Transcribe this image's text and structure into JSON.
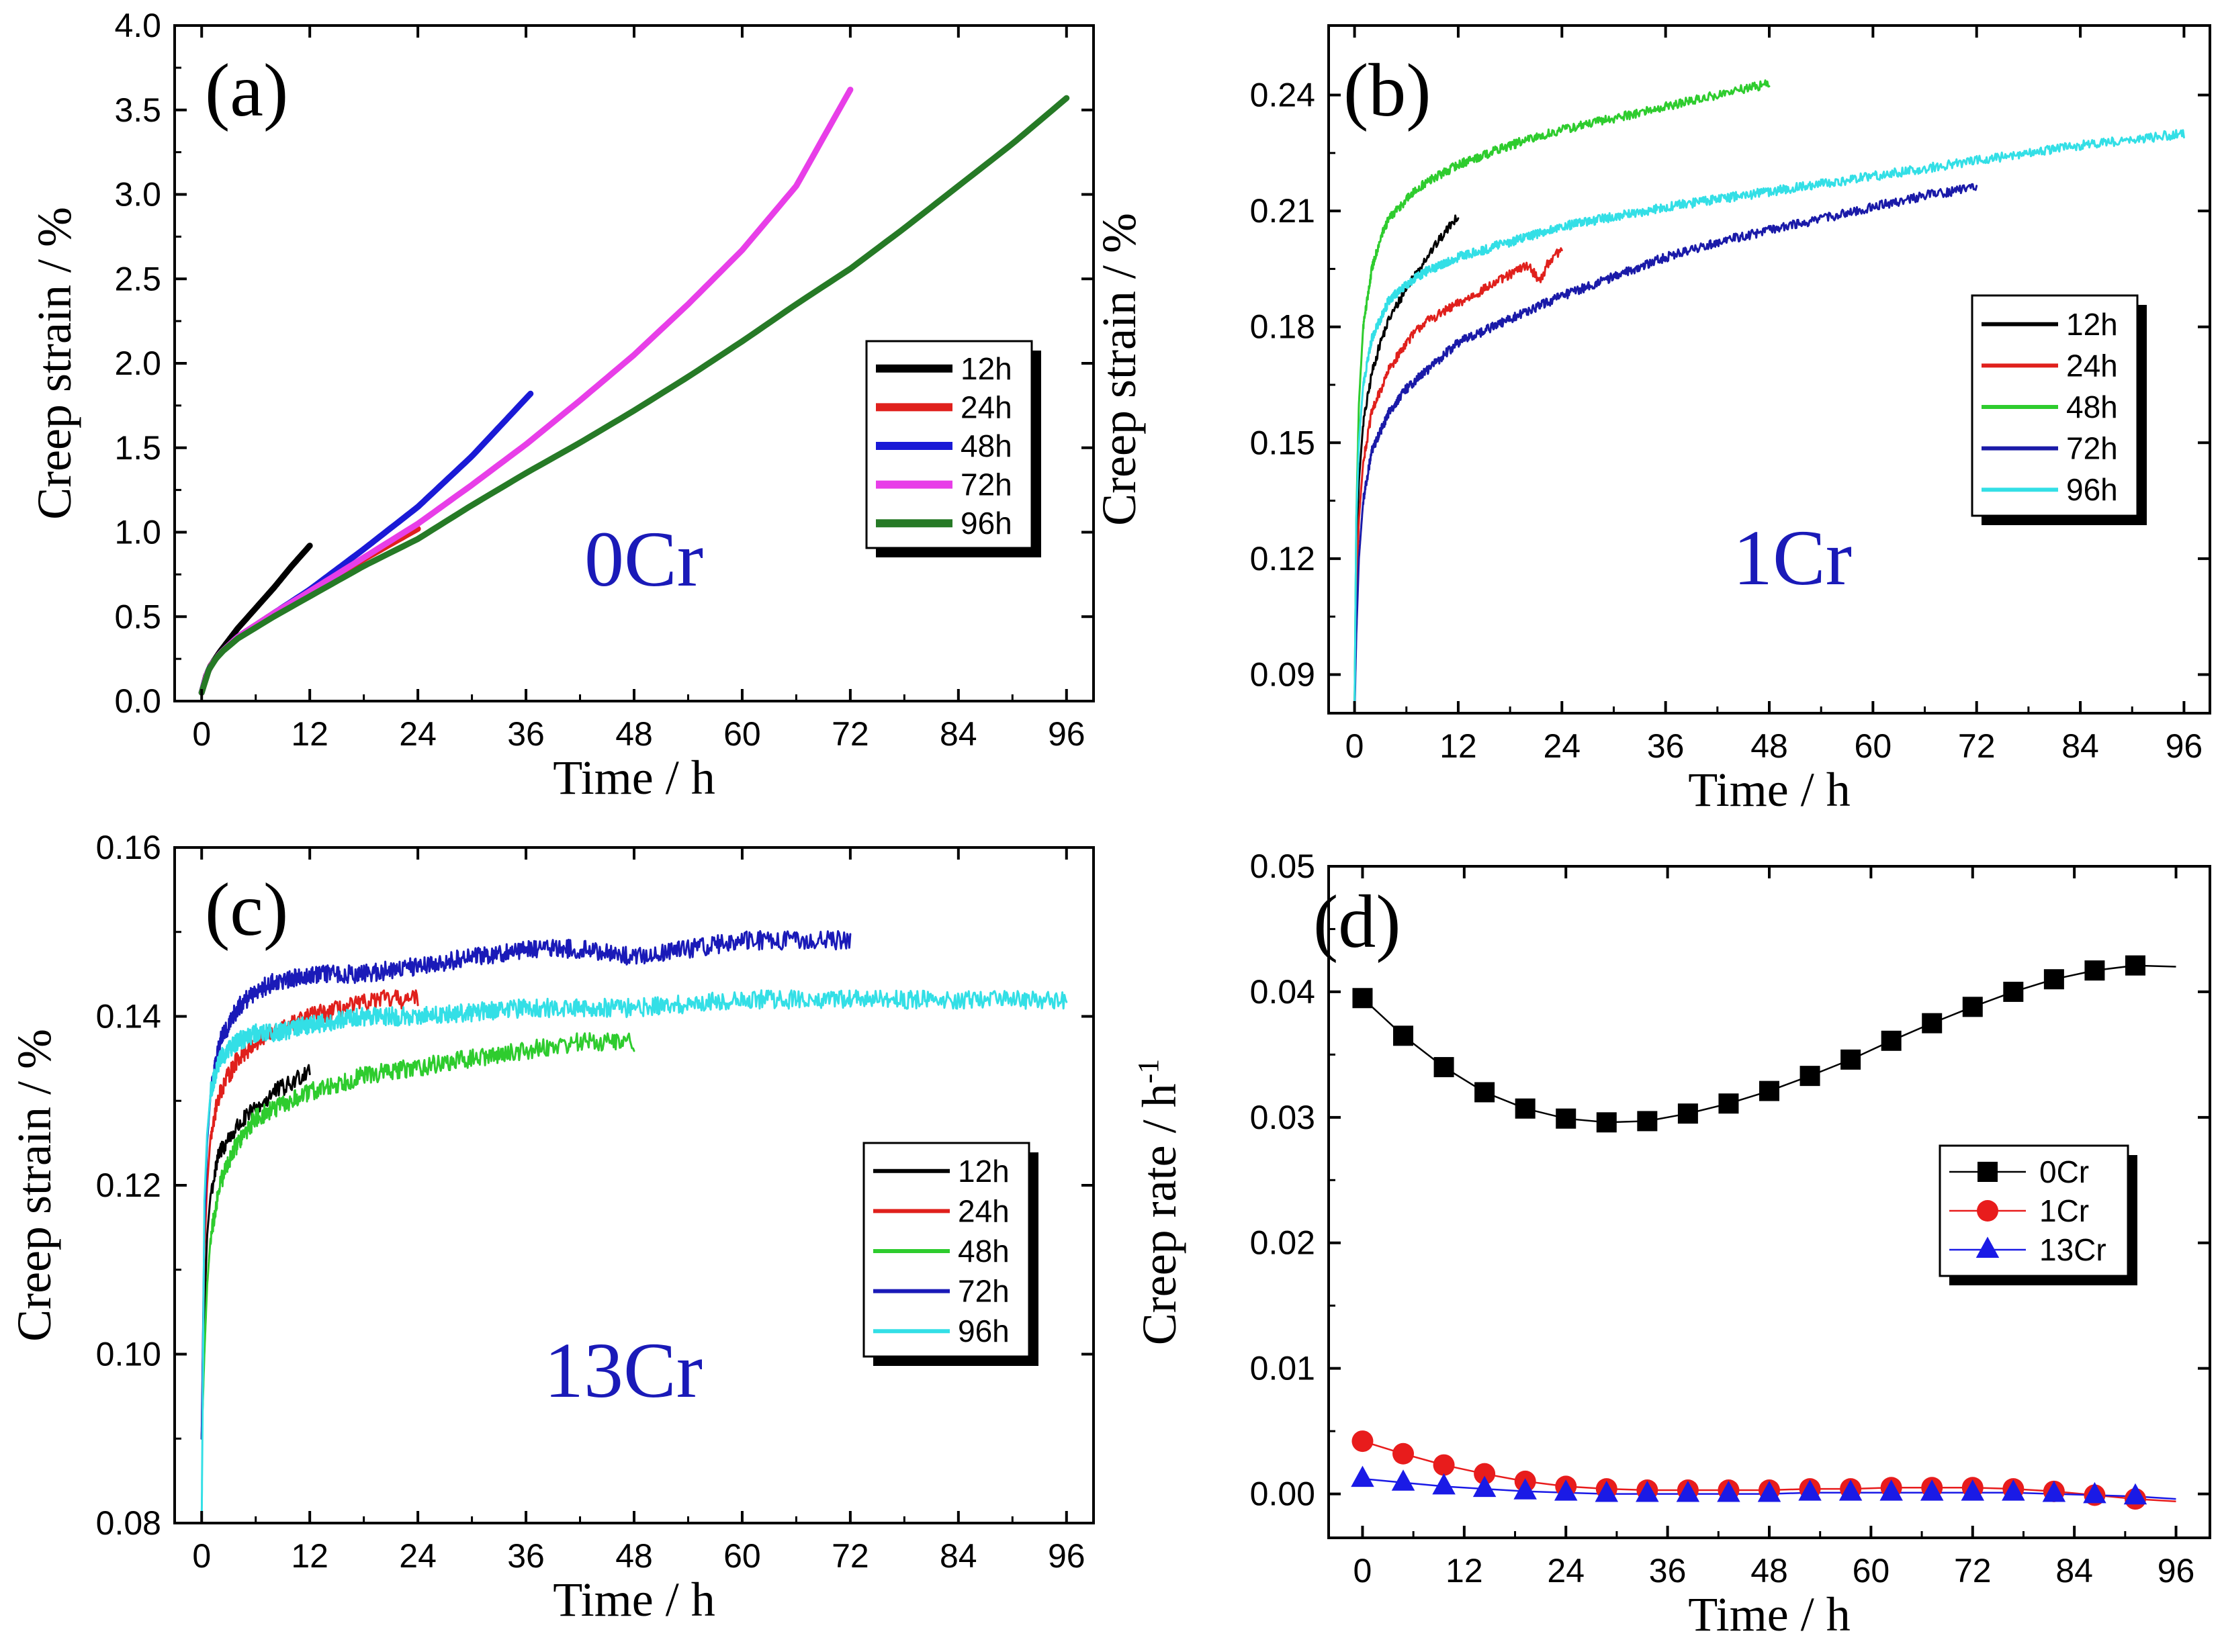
{
  "chart_data": [
    {
      "panel_label": "(a)",
      "type": "line",
      "annotation": "0Cr",
      "xlabel": "Time / h",
      "ylabel": "Creep strain / %",
      "xlim": [
        -3,
        99
      ],
      "ylim": [
        0,
        4.0
      ],
      "xticks": [
        "0",
        "12",
        "24",
        "36",
        "48",
        "60",
        "72",
        "84",
        "96"
      ],
      "yticks": [
        "0.0",
        "0.5",
        "1.0",
        "1.5",
        "2.0",
        "2.5",
        "3.0",
        "3.5",
        "4.0"
      ],
      "legend_position": "right-middle",
      "noise": 0,
      "series": [
        {
          "name": "12h",
          "color": "#000000",
          "x": [
            0,
            0.5,
            1,
            2,
            4,
            6,
            8,
            10,
            12
          ],
          "values": [
            0.05,
            0.15,
            0.21,
            0.29,
            0.43,
            0.55,
            0.67,
            0.8,
            0.92
          ]
        },
        {
          "name": "24h",
          "color": "#e0201c",
          "x": [
            0,
            0.5,
            1,
            2,
            4,
            8,
            12,
            16,
            20,
            24
          ],
          "values": [
            0.05,
            0.15,
            0.21,
            0.28,
            0.38,
            0.52,
            0.65,
            0.78,
            0.9,
            1.02
          ]
        },
        {
          "name": "48h",
          "color": "#1a1ad6",
          "x": [
            0,
            0.5,
            1,
            2,
            4,
            8,
            12,
            18,
            24,
            30,
            36.5
          ],
          "values": [
            0.05,
            0.15,
            0.21,
            0.28,
            0.38,
            0.52,
            0.66,
            0.9,
            1.15,
            1.45,
            1.82
          ]
        },
        {
          "name": "72h",
          "color": "#e83ee8",
          "x": [
            0,
            0.5,
            1,
            2,
            4,
            8,
            12,
            18,
            24,
            30,
            36,
            42,
            48,
            54,
            60,
            66,
            72
          ],
          "values": [
            0.05,
            0.15,
            0.21,
            0.28,
            0.38,
            0.52,
            0.65,
            0.85,
            1.05,
            1.28,
            1.52,
            1.78,
            2.05,
            2.35,
            2.67,
            3.05,
            3.62
          ]
        },
        {
          "name": "96h",
          "color": "#267a26",
          "x": [
            0,
            0.5,
            1,
            2,
            4,
            8,
            12,
            18,
            24,
            30,
            36,
            42,
            48,
            54,
            60,
            66,
            72,
            78,
            84,
            90,
            96
          ],
          "values": [
            0.05,
            0.15,
            0.21,
            0.28,
            0.37,
            0.5,
            0.62,
            0.8,
            0.96,
            1.16,
            1.35,
            1.53,
            1.72,
            1.92,
            2.13,
            2.35,
            2.56,
            2.8,
            3.05,
            3.3,
            3.57
          ]
        }
      ]
    },
    {
      "panel_label": "(b)",
      "type": "line",
      "annotation": "1Cr",
      "xlabel": "Time / h",
      "ylabel": "Creep strain / %",
      "xlim": [
        -3,
        99
      ],
      "ylim": [
        0.08,
        0.258
      ],
      "xticks": [
        "0",
        "12",
        "24",
        "36",
        "48",
        "60",
        "72",
        "84",
        "96"
      ],
      "yticks": [
        "0.09",
        "0.12",
        "0.15",
        "0.18",
        "0.21",
        "0.24"
      ],
      "ytick_values": [
        0.09,
        0.12,
        0.15,
        0.18,
        0.21,
        0.24
      ],
      "legend_position": "right-middle",
      "noise": 0.0012,
      "series": [
        {
          "name": "12h",
          "color": "#000000",
          "x": [
            0,
            0.2,
            0.5,
            1,
            2,
            3,
            4,
            6,
            8,
            10,
            12
          ],
          "values": [
            0.08,
            0.12,
            0.14,
            0.155,
            0.168,
            0.176,
            0.182,
            0.19,
            0.197,
            0.203,
            0.209
          ]
        },
        {
          "name": "24h",
          "color": "#e0201c",
          "x": [
            0,
            0.2,
            0.5,
            1,
            2,
            4,
            6,
            8,
            12,
            16,
            20,
            21.5,
            22.5,
            24
          ],
          "values": [
            0.08,
            0.11,
            0.13,
            0.145,
            0.158,
            0.169,
            0.176,
            0.181,
            0.186,
            0.191,
            0.196,
            0.192,
            0.197,
            0.2
          ]
        },
        {
          "name": "48h",
          "color": "#2ecc2e",
          "x": [
            0,
            0.2,
            0.5,
            1,
            2,
            3,
            4,
            6,
            8,
            12,
            18,
            24,
            30,
            36,
            42,
            48
          ],
          "values": [
            0.08,
            0.13,
            0.16,
            0.18,
            0.195,
            0.203,
            0.208,
            0.213,
            0.217,
            0.222,
            0.227,
            0.231,
            0.234,
            0.237,
            0.24,
            0.243
          ]
        },
        {
          "name": "72h",
          "color": "#1a1aa8",
          "x": [
            0,
            0.2,
            0.5,
            1,
            2,
            4,
            6,
            8,
            12,
            18,
            24,
            30,
            36,
            42,
            48,
            54,
            60,
            66,
            72
          ],
          "values": [
            0.08,
            0.1,
            0.12,
            0.135,
            0.148,
            0.158,
            0.164,
            0.168,
            0.176,
            0.182,
            0.188,
            0.193,
            0.198,
            0.202,
            0.205,
            0.208,
            0.211,
            0.214,
            0.216
          ]
        },
        {
          "name": "96h",
          "color": "#33dfe6",
          "x": [
            0,
            0.2,
            0.5,
            1,
            2,
            4,
            6,
            8,
            12,
            18,
            24,
            36,
            48,
            60,
            72,
            84,
            96
          ],
          "values": [
            0.08,
            0.13,
            0.15,
            0.165,
            0.177,
            0.187,
            0.191,
            0.194,
            0.198,
            0.202,
            0.206,
            0.211,
            0.215,
            0.219,
            0.223,
            0.227,
            0.23
          ]
        }
      ]
    },
    {
      "panel_label": "(c)",
      "type": "line",
      "annotation": "13Cr",
      "xlabel": "Time / h",
      "ylabel": "Creep strain / %",
      "xlim": [
        -3,
        99
      ],
      "ylim": [
        0.08,
        0.16
      ],
      "xticks": [
        "0",
        "12",
        "24",
        "36",
        "48",
        "60",
        "72",
        "84",
        "96"
      ],
      "yticks": [
        "0.08",
        "0.10",
        "0.12",
        "0.14",
        "0.16"
      ],
      "ytick_values": [
        0.08,
        0.1,
        0.12,
        0.14,
        0.16
      ],
      "legend_position": "right-lower",
      "noise": 0.0011,
      "series": [
        {
          "name": "12h",
          "color": "#000000",
          "x": [
            0,
            0.3,
            0.6,
            1,
            2,
            4,
            6,
            8,
            10,
            12
          ],
          "values": [
            0.09,
            0.105,
            0.114,
            0.119,
            0.124,
            0.127,
            0.129,
            0.131,
            0.132,
            0.134
          ]
        },
        {
          "name": "24h",
          "color": "#e0201c",
          "x": [
            0,
            0.3,
            0.6,
            1,
            2,
            4,
            6,
            8,
            12,
            16,
            20,
            24
          ],
          "values": [
            0.09,
            0.112,
            0.12,
            0.126,
            0.131,
            0.135,
            0.137,
            0.138,
            0.14,
            0.141,
            0.142,
            0.142
          ]
        },
        {
          "name": "48h",
          "color": "#2ecc2e",
          "x": [
            0,
            0.3,
            0.6,
            1,
            2,
            3,
            4,
            6,
            8,
            12,
            18,
            24,
            30,
            36,
            42,
            48
          ],
          "values": [
            0.09,
            0.1,
            0.108,
            0.114,
            0.12,
            0.123,
            0.125,
            0.128,
            0.129,
            0.131,
            0.133,
            0.134,
            0.135,
            0.136,
            0.137,
            0.137
          ]
        },
        {
          "name": "72h",
          "color": "#1a1ab8",
          "x": [
            0,
            0.3,
            0.6,
            1,
            2,
            4,
            6,
            8,
            12,
            18,
            24,
            30,
            36,
            42,
            48,
            54,
            60,
            66,
            72
          ],
          "values": [
            0.09,
            0.115,
            0.125,
            0.131,
            0.137,
            0.141,
            0.143,
            0.144,
            0.145,
            0.145,
            0.146,
            0.147,
            0.148,
            0.148,
            0.147,
            0.148,
            0.149,
            0.149,
            0.149
          ]
        },
        {
          "name": "96h",
          "color": "#33dfe6",
          "x": [
            0,
            0.3,
            0.6,
            1,
            2,
            4,
            6,
            8,
            12,
            18,
            24,
            36,
            48,
            60,
            72,
            84,
            96
          ],
          "values": [
            0.08,
            0.118,
            0.126,
            0.131,
            0.135,
            0.137,
            0.138,
            0.138,
            0.139,
            0.14,
            0.14,
            0.141,
            0.141,
            0.142,
            0.142,
            0.142,
            0.142
          ]
        }
      ]
    },
    {
      "panel_label": "(d)",
      "type": "scatter",
      "xlabel": "Time / h",
      "ylabel": "Creep rate / h",
      "ylabel_sup": "-1",
      "xlim": [
        -4,
        100
      ],
      "ylim": [
        -0.0035,
        0.05
      ],
      "xticks": [
        "0",
        "12",
        "24",
        "36",
        "48",
        "60",
        "72",
        "84",
        "96"
      ],
      "yticks": [
        "0.00",
        "0.01",
        "0.02",
        "0.03",
        "0.04",
        "0.05"
      ],
      "ytick_values": [
        0.0,
        0.01,
        0.02,
        0.03,
        0.04,
        0.05
      ],
      "legend_position": "right-middle",
      "x": [
        0,
        4.8,
        9.6,
        14.4,
        19.2,
        24,
        28.8,
        33.6,
        38.4,
        43.2,
        48,
        52.8,
        57.6,
        62.4,
        67.2,
        72,
        76.8,
        81.6,
        86.4,
        91.2
      ],
      "fit_end_x": 96,
      "series": [
        {
          "name": "0Cr",
          "marker": "square",
          "color": "#000000",
          "values": [
            0.0395,
            0.0365,
            0.034,
            0.032,
            0.0307,
            0.0299,
            0.0296,
            0.0297,
            0.0303,
            0.0311,
            0.0321,
            0.0333,
            0.0346,
            0.0361,
            0.0375,
            0.0388,
            0.04,
            0.041,
            0.0417,
            0.0421
          ],
          "fit_end": 0.042
        },
        {
          "name": "1Cr",
          "marker": "circle",
          "color": "#e81c1c",
          "values": [
            0.0042,
            0.0032,
            0.0023,
            0.0016,
            0.001,
            0.0006,
            0.0004,
            0.0003,
            0.0003,
            0.0003,
            0.0003,
            0.0004,
            0.0004,
            0.0005,
            0.0005,
            0.0005,
            0.0004,
            0.0002,
            -0.0001,
            -0.0004
          ],
          "fit_end": -0.0006
        },
        {
          "name": "13Cr",
          "marker": "triangle",
          "color": "#1a1ae6",
          "values": [
            0.0012,
            0.0009,
            0.0006,
            0.0004,
            0.0002,
            0.0001,
            0.0,
            0.0,
            0.0,
            0.0,
            0.0,
            0.0001,
            0.0001,
            0.0001,
            0.0001,
            0.0001,
            0.0001,
            0.0,
            -0.0001,
            -0.0002
          ],
          "fit_end": -0.0004
        }
      ]
    }
  ]
}
